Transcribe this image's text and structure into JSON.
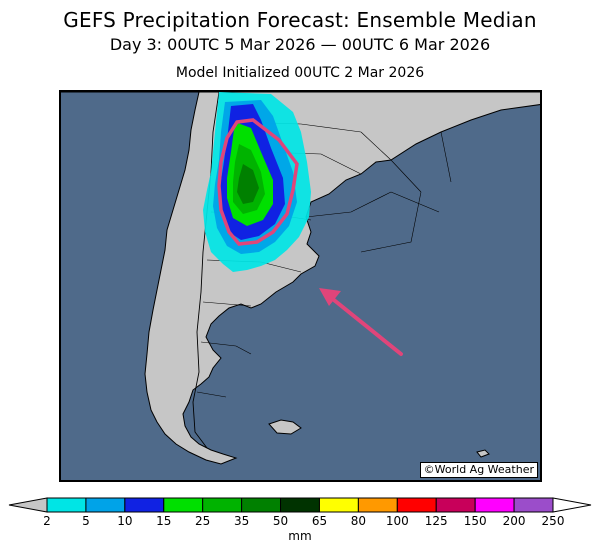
{
  "title": "GEFS Precipitation Forecast: Ensemble Median",
  "subtitle": "Day 3: 00UTC 5 Mar 2026 — 00UTC 6 Mar 2026",
  "init_line": "Model Initialized 00UTC 2 Mar 2026",
  "credit": "©World Ag Weather",
  "colorbar": {
    "unit": "mm",
    "ticks": [
      "2",
      "5",
      "10",
      "15",
      "25",
      "35",
      "50",
      "65",
      "80",
      "100",
      "125",
      "150",
      "200",
      "250"
    ],
    "colors": [
      "#00e5e5",
      "#00a3e8",
      "#1022e3",
      "#00e000",
      "#00b300",
      "#008000",
      "#003300",
      "#ffff00",
      "#ff9900",
      "#ff0000",
      "#c8005a",
      "#ff00ff",
      "#9b4dca"
    ]
  },
  "colors": {
    "ocean": "#4f6a8a",
    "land": "#c6c6c6",
    "highlight_outline": "#e0457a",
    "arrow": "#e0457a"
  }
}
